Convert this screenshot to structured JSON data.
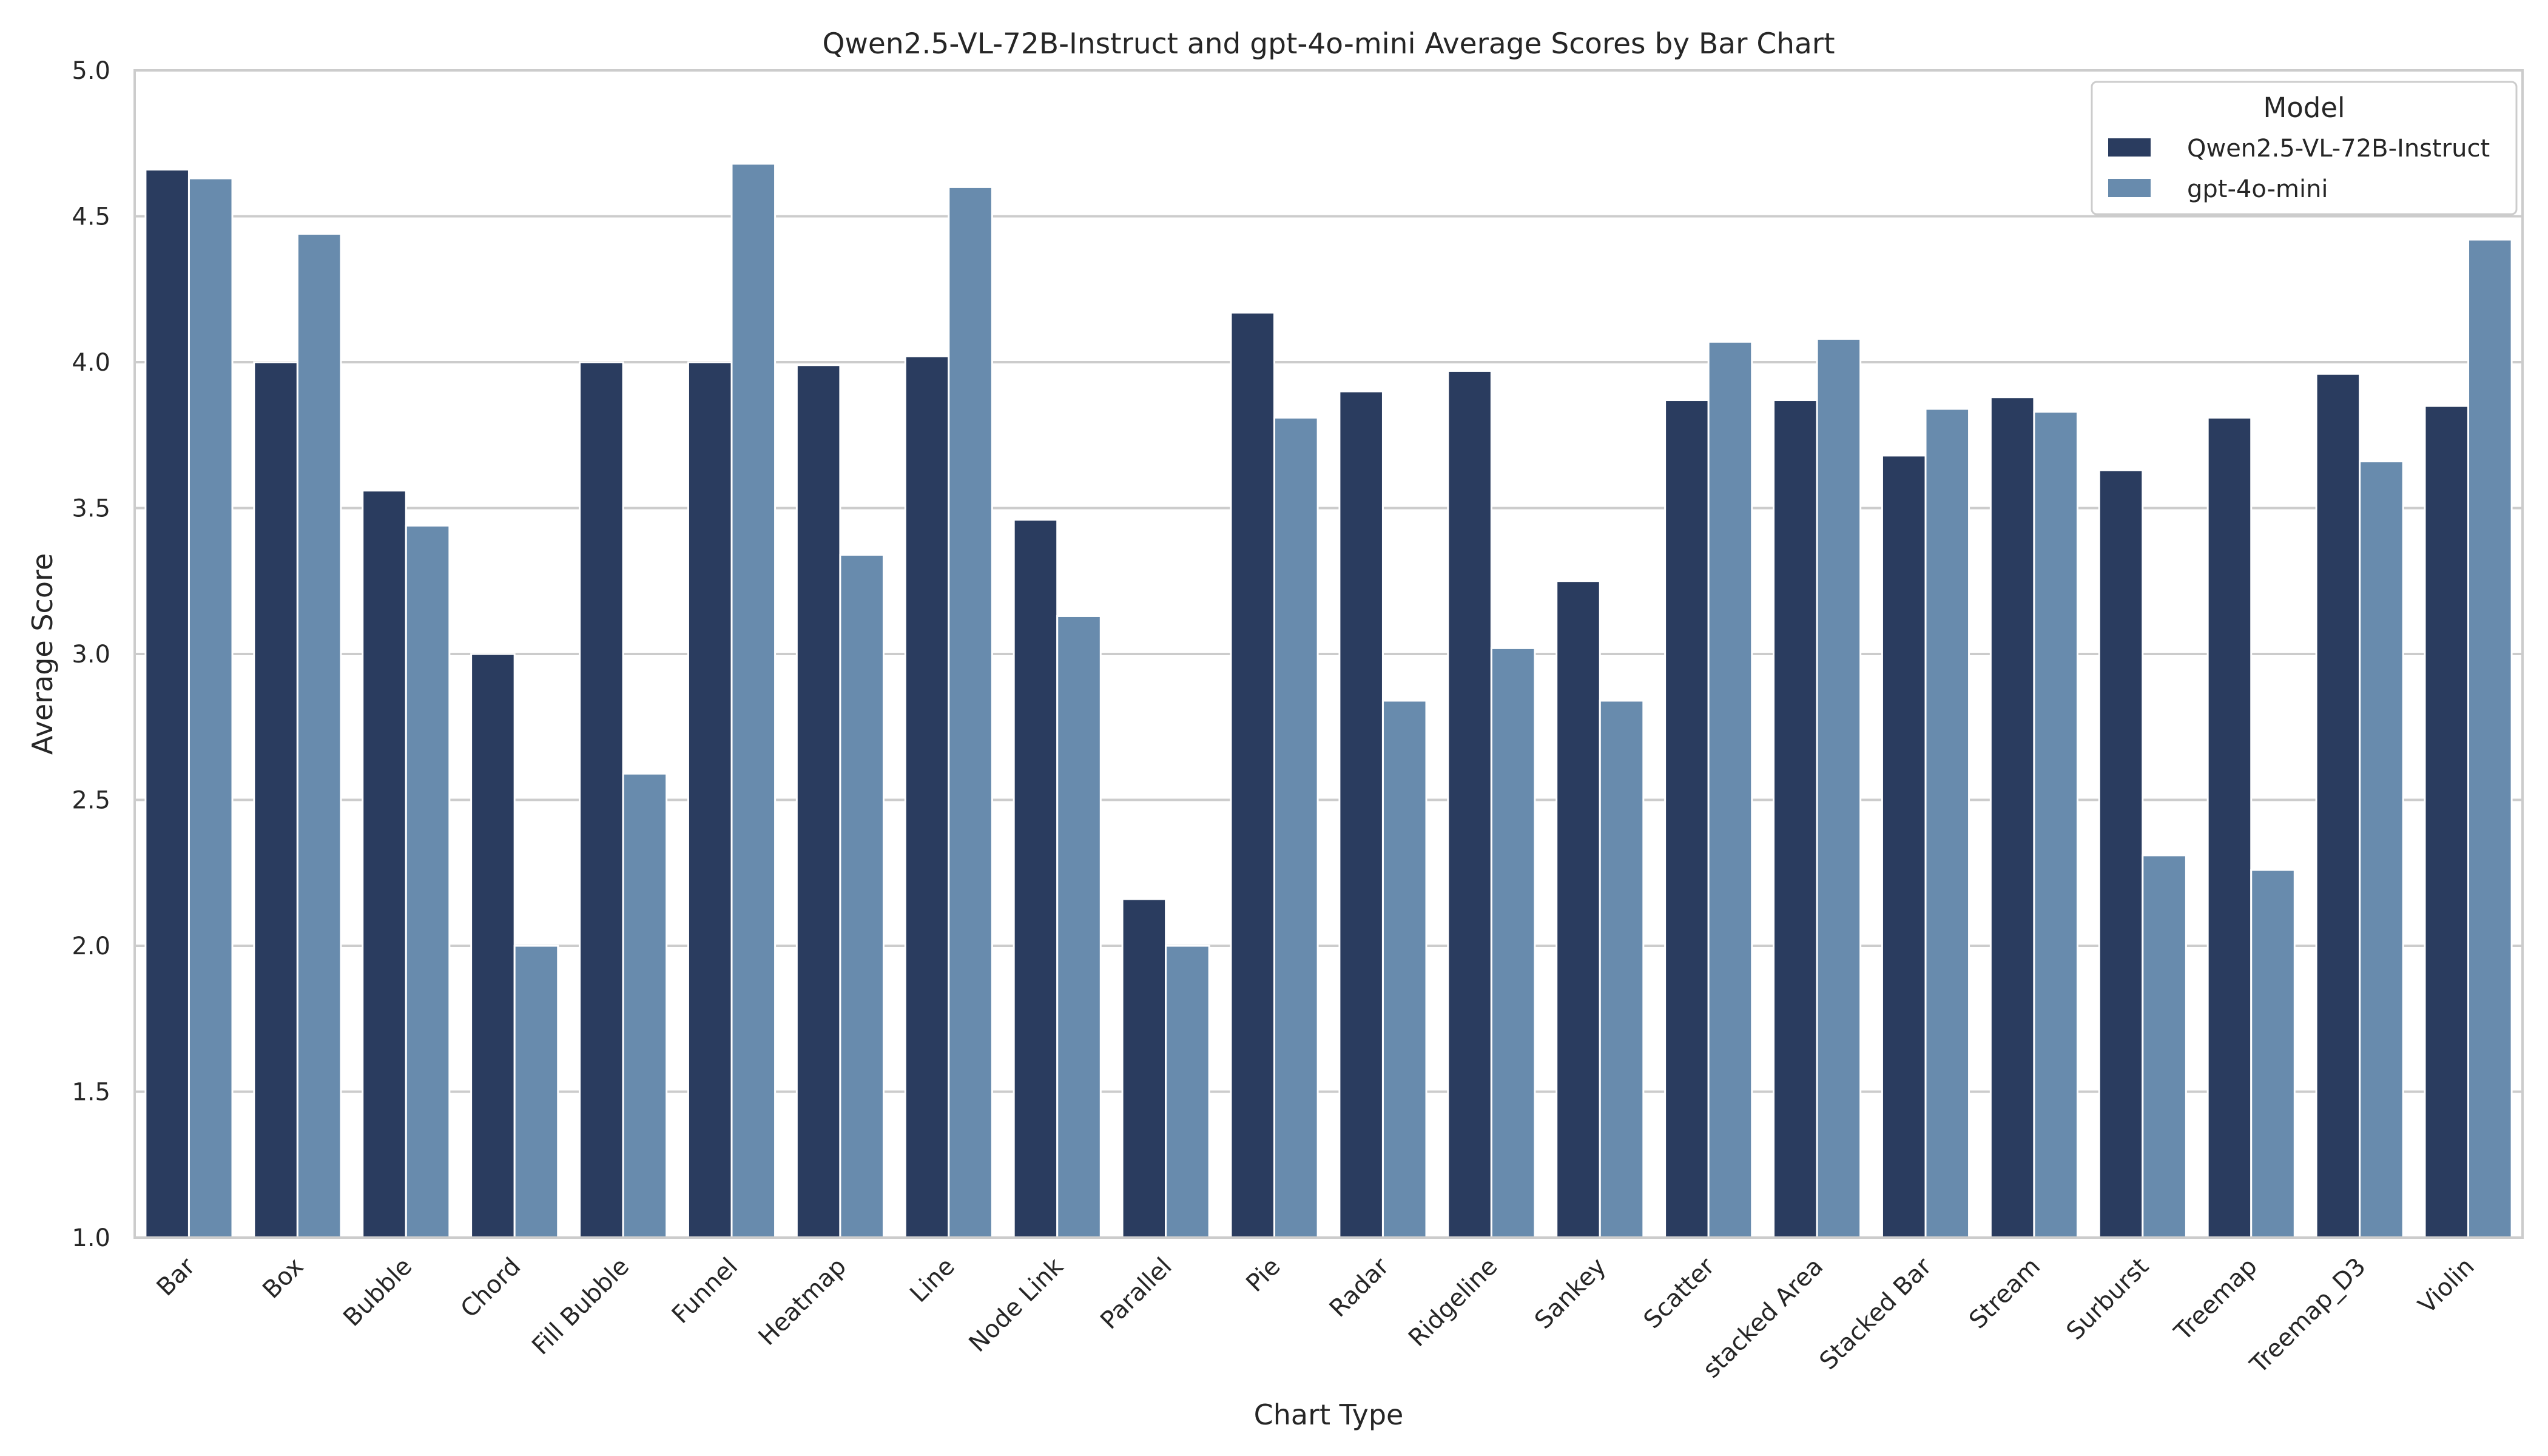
{
  "chart_data": {
    "type": "bar",
    "title": "Qwen2.5-VL-72B-Instruct and gpt-4o-mini Average Scores by Bar Chart",
    "xlabel": "Chart Type",
    "ylabel": "Average Score",
    "ylim": [
      1.0,
      5.0
    ],
    "yticks": [
      "1.0",
      "1.5",
      "2.0",
      "2.5",
      "3.0",
      "3.5",
      "4.0",
      "4.5",
      "5.0"
    ],
    "grid": "horizontal",
    "legend": {
      "title": "Model",
      "placement": "top-right"
    },
    "categories": [
      "Bar",
      "Box",
      "Bubble",
      "Chord",
      "Fill Bubble",
      "Funnel",
      "Heatmap",
      "Line",
      "Node Link",
      "Parallel",
      "Pie",
      "Radar",
      "Ridgeline",
      "Sankey",
      "Scatter",
      "stacked Area",
      "Stacked Bar",
      "Stream",
      "Surburst",
      "Treemap",
      "Treemap_D3",
      "Violin"
    ],
    "series": [
      {
        "name": "Qwen2.5-VL-72B-Instruct",
        "color": "#2a3c5f",
        "values": [
          4.66,
          4.0,
          3.56,
          3.0,
          4.0,
          4.0,
          3.99,
          4.02,
          3.46,
          2.16,
          4.17,
          3.9,
          3.97,
          3.25,
          3.87,
          3.87,
          3.68,
          3.88,
          3.63,
          3.81,
          3.96,
          3.85
        ]
      },
      {
        "name": "gpt-4o-mini",
        "color": "#688bad",
        "values": [
          4.63,
          4.44,
          3.44,
          2.0,
          2.59,
          4.68,
          3.34,
          4.6,
          3.13,
          2.0,
          3.81,
          2.84,
          3.02,
          2.84,
          4.07,
          4.08,
          3.84,
          3.83,
          2.31,
          2.26,
          3.66,
          4.42
        ]
      }
    ]
  }
}
